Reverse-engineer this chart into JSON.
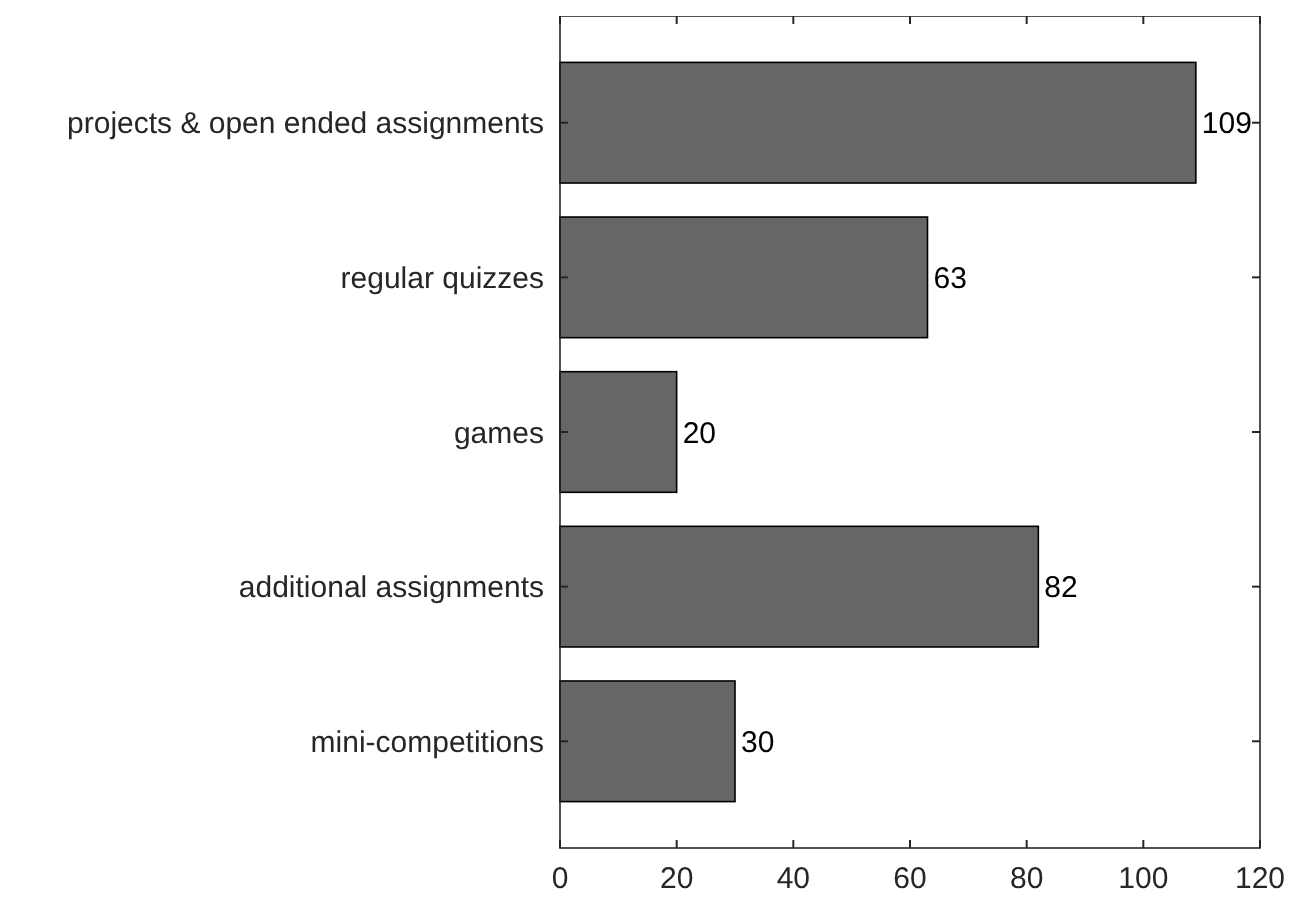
{
  "chart_data": {
    "type": "bar",
    "orientation": "horizontal",
    "categories": [
      "projects & open ended assignments",
      "regular quizzes",
      "games",
      "additional assignments",
      "mini-competitions"
    ],
    "values": [
      109,
      63,
      20,
      82,
      30
    ],
    "color": "#666666",
    "xlim": [
      0,
      120
    ],
    "xticks": [
      0,
      20,
      40,
      60,
      80,
      100,
      120
    ],
    "data_labels": true,
    "grid": false
  }
}
